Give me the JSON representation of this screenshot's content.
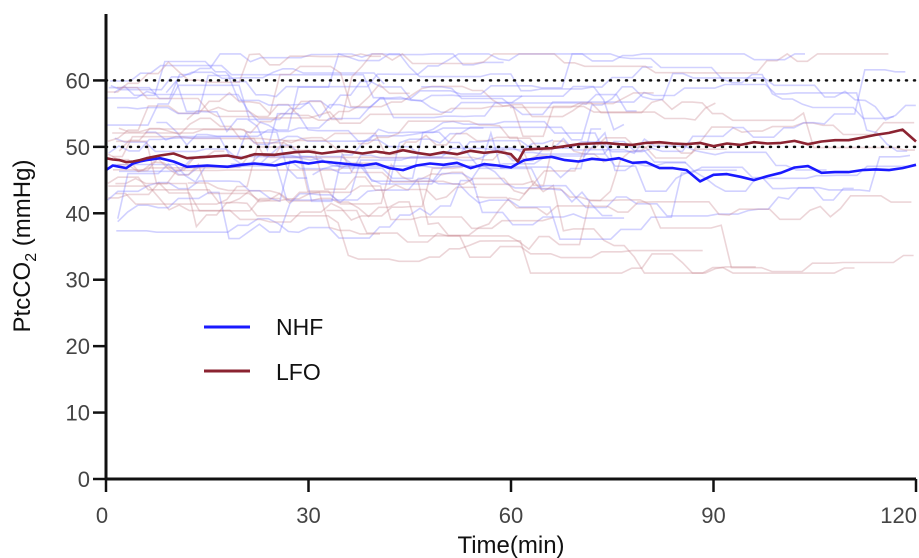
{
  "chart_data": {
    "type": "line",
    "title": "",
    "xlabel": "Time(min)",
    "ylabel": {
      "main": "PtcCO",
      "sub": "2",
      "unit": " (mmHg)"
    },
    "xlim": [
      0,
      120
    ],
    "ylim": [
      0,
      70
    ],
    "xticks": [
      "0",
      "30",
      "60",
      "90",
      "120"
    ],
    "yticks": [
      "0",
      "10",
      "20",
      "30",
      "40",
      "50",
      "60"
    ],
    "reference_lines": [
      {
        "y": 60,
        "style": "dotted"
      },
      {
        "y": 50,
        "style": "dotted"
      }
    ],
    "legend": {
      "placement": "lower-left"
    },
    "series": [
      {
        "name": "NHF",
        "color": "#1a1aff",
        "x": [
          0,
          1,
          2,
          3,
          4,
          5,
          6,
          8,
          10,
          12,
          15,
          18,
          20,
          22,
          25,
          28,
          30,
          32,
          35,
          38,
          40,
          42,
          44,
          46,
          48,
          50,
          52,
          54,
          56,
          58,
          60,
          61,
          62,
          64,
          66,
          68,
          70,
          72,
          74,
          76,
          78,
          80,
          82,
          84,
          86,
          88,
          90,
          92,
          94,
          96,
          98,
          100,
          102,
          104,
          106,
          108,
          110,
          112,
          114,
          116,
          118,
          120
        ],
        "values": [
          46.5,
          47.2,
          47,
          46.8,
          47.5,
          47.8,
          48,
          48.3,
          47.8,
          47,
          47.2,
          47,
          47.3,
          47.5,
          47.2,
          47.8,
          47.5,
          47.8,
          47.5,
          47.2,
          47.5,
          46.8,
          46.5,
          47.2,
          47.5,
          47.3,
          47.6,
          46.8,
          47.4,
          47.2,
          46.9,
          47.5,
          48,
          48.3,
          48.5,
          48,
          47.8,
          48.2,
          48,
          48.3,
          47.6,
          47.7,
          46.8,
          46.8,
          46.5,
          44.8,
          45.8,
          45.9,
          45.5,
          45,
          45.6,
          46.1,
          46.9,
          47.1,
          46.1,
          46.2,
          46.2,
          46.5,
          46.6,
          46.5,
          46.8,
          47.3
        ]
      },
      {
        "name": "LFO",
        "color": "#8b2331",
        "x": [
          0,
          1,
          2,
          3,
          4,
          5,
          6,
          8,
          10,
          12,
          15,
          18,
          20,
          22,
          25,
          28,
          30,
          32,
          35,
          38,
          40,
          42,
          44,
          46,
          48,
          50,
          52,
          54,
          56,
          58,
          60,
          61,
          62,
          64,
          66,
          68,
          70,
          72,
          74,
          76,
          78,
          80,
          82,
          84,
          86,
          88,
          90,
          92,
          94,
          96,
          98,
          100,
          102,
          104,
          106,
          108,
          110,
          112,
          114,
          116,
          118,
          120
        ],
        "values": [
          48.3,
          48.1,
          48,
          47.7,
          47.8,
          48,
          48.3,
          48.7,
          49,
          48.3,
          48.5,
          48.7,
          48.3,
          48.9,
          48.8,
          49.2,
          49.3,
          49,
          49.4,
          49,
          49.3,
          49,
          49.5,
          49.1,
          48.8,
          49.2,
          48.9,
          49.4,
          49.1,
          49.3,
          48.9,
          47.8,
          49.6,
          49.7,
          49.8,
          50.1,
          50.4,
          50.5,
          50.6,
          50.4,
          50.3,
          50.6,
          50.7,
          50.5,
          50.4,
          50.6,
          50.1,
          50.5,
          50.3,
          50.7,
          50.5,
          50.6,
          50.9,
          50.4,
          50.8,
          51,
          51,
          51.4,
          51.8,
          52.1,
          52.6,
          50.8
        ]
      }
    ]
  }
}
